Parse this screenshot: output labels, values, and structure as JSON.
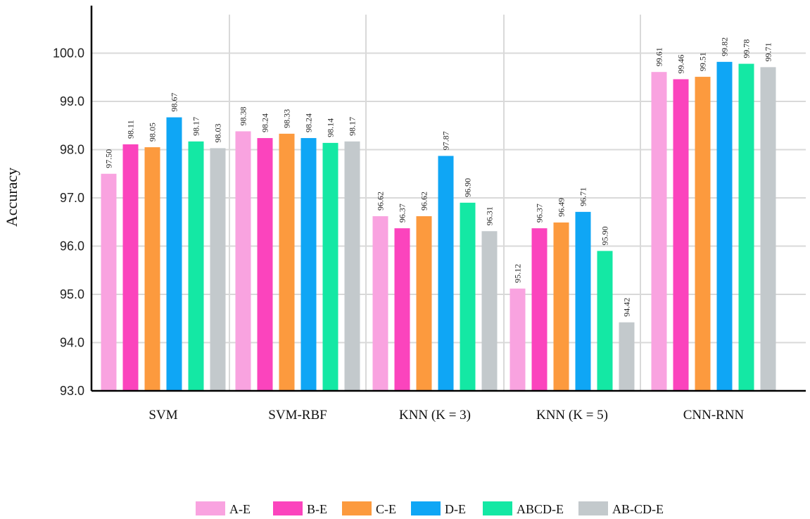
{
  "chart_data": {
    "type": "bar",
    "title": "",
    "xlabel": "",
    "ylabel": "Accuracy",
    "ylim": [
      93.0,
      100.8
    ],
    "yticks": [
      "93.0",
      "94.0",
      "95.0",
      "96.0",
      "97.0",
      "98.0",
      "99.0",
      "100.0"
    ],
    "grid": true,
    "legend_position": "bottom-center",
    "categories": [
      "SVM",
      "SVM-RBF",
      "KNN (K = 3)",
      "KNN (K = 5)",
      "CNN-RNN"
    ],
    "series": [
      {
        "name": "A-E",
        "color": "#f9a3e0",
        "values": [
          97.5,
          98.38,
          96.62,
          95.12,
          99.61
        ]
      },
      {
        "name": "B-E",
        "color": "#fb44bd",
        "values": [
          98.11,
          98.24,
          96.37,
          96.37,
          99.46
        ]
      },
      {
        "name": "C-E",
        "color": "#fc9a3e",
        "values": [
          98.05,
          98.33,
          96.62,
          96.49,
          99.51
        ]
      },
      {
        "name": "D-E",
        "color": "#0fa6f5",
        "values": [
          98.67,
          98.24,
          97.87,
          96.71,
          99.82
        ]
      },
      {
        "name": "ABCD-E",
        "color": "#14e8a4",
        "values": [
          98.17,
          98.14,
          96.9,
          95.9,
          99.78
        ]
      },
      {
        "name": "AB-CD-E",
        "color": "#c3c9cc",
        "values": [
          98.03,
          98.17,
          96.31,
          94.42,
          99.71
        ]
      }
    ],
    "data_labels": [
      [
        "97.50",
        "98.38",
        "96.62",
        "95.12",
        "99.61"
      ],
      [
        "98.11",
        "98.24",
        "96.37",
        "96.37",
        "99.46"
      ],
      [
        "98.05",
        "98.33",
        "96.62",
        "96.49",
        "99.51"
      ],
      [
        "98.67",
        "98.24",
        "97.87",
        "96.71",
        "99.82"
      ],
      [
        "98.17",
        "98.14",
        "96.90",
        "95.90",
        "99.78"
      ],
      [
        "98.03",
        "98.17",
        "96.31",
        "94.42",
        "99.71"
      ]
    ]
  }
}
